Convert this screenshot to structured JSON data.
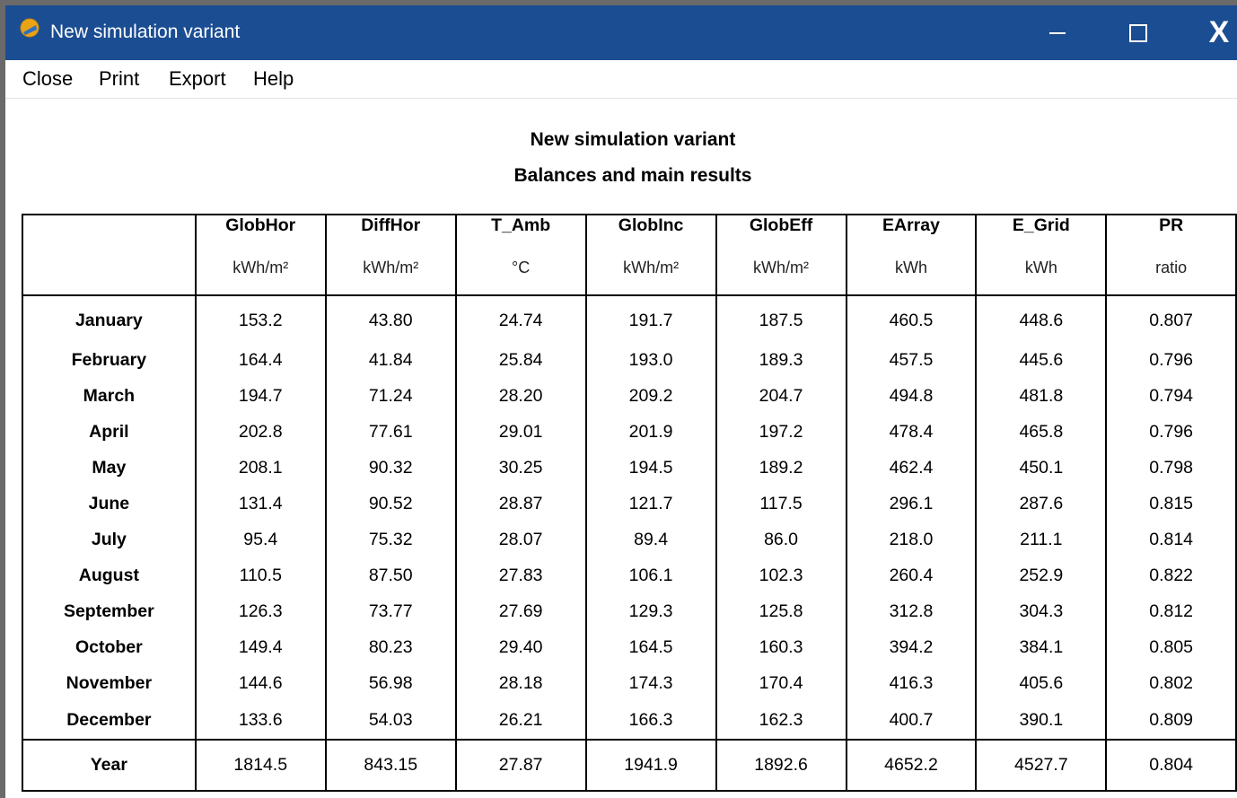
{
  "window": {
    "title": "New simulation variant",
    "controls": {
      "minimize": "—",
      "maximize": "☐",
      "close": "X"
    }
  },
  "menu": [
    "Close",
    "Print",
    "Export",
    "Help"
  ],
  "report": {
    "title": "New simulation variant",
    "subtitle": "Balances and main results"
  },
  "table": {
    "columns": [
      {
        "name": "GlobHor",
        "unit": "kWh/m²"
      },
      {
        "name": "DiffHor",
        "unit": "kWh/m²"
      },
      {
        "name": "T_Amb",
        "unit": "°C"
      },
      {
        "name": "GlobInc",
        "unit": "kWh/m²"
      },
      {
        "name": "GlobEff",
        "unit": "kWh/m²"
      },
      {
        "name": "EArray",
        "unit": "kWh"
      },
      {
        "name": "E_Grid",
        "unit": "kWh"
      },
      {
        "name": "PR",
        "unit": "ratio"
      }
    ],
    "rows": [
      {
        "label": "January",
        "values": [
          "153.2",
          "43.80",
          "24.74",
          "191.7",
          "187.5",
          "460.5",
          "448.6",
          "0.807"
        ]
      },
      {
        "label": "February",
        "values": [
          "164.4",
          "41.84",
          "25.84",
          "193.0",
          "189.3",
          "457.5",
          "445.6",
          "0.796"
        ]
      },
      {
        "label": "March",
        "values": [
          "194.7",
          "71.24",
          "28.20",
          "209.2",
          "204.7",
          "494.8",
          "481.8",
          "0.794"
        ]
      },
      {
        "label": "April",
        "values": [
          "202.8",
          "77.61",
          "29.01",
          "201.9",
          "197.2",
          "478.4",
          "465.8",
          "0.796"
        ]
      },
      {
        "label": "May",
        "values": [
          "208.1",
          "90.32",
          "30.25",
          "194.5",
          "189.2",
          "462.4",
          "450.1",
          "0.798"
        ]
      },
      {
        "label": "June",
        "values": [
          "131.4",
          "90.52",
          "28.87",
          "121.7",
          "117.5",
          "296.1",
          "287.6",
          "0.815"
        ]
      },
      {
        "label": "July",
        "values": [
          "95.4",
          "75.32",
          "28.07",
          "89.4",
          "86.0",
          "218.0",
          "211.1",
          "0.814"
        ]
      },
      {
        "label": "August",
        "values": [
          "110.5",
          "87.50",
          "27.83",
          "106.1",
          "102.3",
          "260.4",
          "252.9",
          "0.822"
        ]
      },
      {
        "label": "September",
        "values": [
          "126.3",
          "73.77",
          "27.69",
          "129.3",
          "125.8",
          "312.8",
          "304.3",
          "0.812"
        ]
      },
      {
        "label": "October",
        "values": [
          "149.4",
          "80.23",
          "29.40",
          "164.5",
          "160.3",
          "394.2",
          "384.1",
          "0.805"
        ]
      },
      {
        "label": "November",
        "values": [
          "144.6",
          "56.98",
          "28.18",
          "174.3",
          "170.4",
          "416.3",
          "405.6",
          "0.802"
        ]
      },
      {
        "label": "December",
        "values": [
          "133.6",
          "54.03",
          "26.21",
          "166.3",
          "162.3",
          "400.7",
          "390.1",
          "0.809"
        ]
      }
    ],
    "total": {
      "label": "Year",
      "values": [
        "1814.5",
        "843.15",
        "27.87",
        "1941.9",
        "1892.6",
        "4652.2",
        "4527.7",
        "0.804"
      ]
    }
  }
}
